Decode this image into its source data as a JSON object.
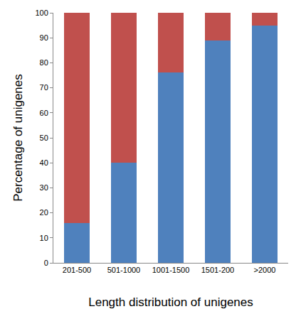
{
  "chart_data": {
    "type": "bar",
    "stacked": true,
    "x_label": "Length distribution of unigenes",
    "y_label": "Percentage of unigenes",
    "categories": [
      "201-500",
      "501-1000",
      "1001-1500",
      "1501-200",
      ">2000"
    ],
    "series": [
      {
        "color": "#4f81bd",
        "values": [
          16,
          40,
          76,
          89,
          95
        ]
      },
      {
        "color": "#c0504d",
        "values": [
          84,
          60,
          24,
          11,
          5
        ]
      }
    ],
    "ylim": [
      0,
      100
    ],
    "yticks": [
      0,
      10,
      20,
      30,
      40,
      50,
      60,
      70,
      80,
      90,
      100
    ],
    "grid": false
  }
}
